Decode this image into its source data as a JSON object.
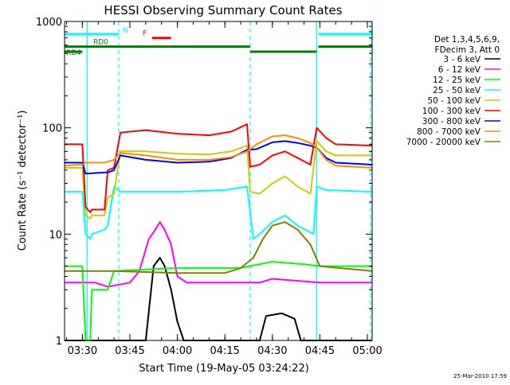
{
  "chart_data": {
    "type": "line",
    "title": "HESSI Observing Summary Count Rates",
    "xlabel": "Start Time (19-May-05 03:24:22)",
    "ylabel": "Count Rate (s⁻¹ detector⁻¹)",
    "yscale": "log",
    "ylim": [
      1,
      1000
    ],
    "yticks": [
      {
        "value": 1,
        "label": "1"
      },
      {
        "value": 10,
        "label": "10"
      },
      {
        "value": 100,
        "label": "100"
      },
      {
        "value": 1000,
        "label": "1000"
      }
    ],
    "xlim": [
      "03:24:22",
      "05:01:30"
    ],
    "xticks": [
      {
        "value": "03:30",
        "label": "03:30"
      },
      {
        "value": "03:45",
        "label": "03:45"
      },
      {
        "value": "04:00",
        "label": "04:00"
      },
      {
        "value": "04:15",
        "label": "04:15"
      },
      {
        "value": "04:30",
        "label": "04:30"
      },
      {
        "value": "04:45",
        "label": "04:45"
      },
      {
        "value": "05:00",
        "label": "05:00"
      }
    ],
    "grid": false,
    "legend_placement": "right",
    "legend_header": [
      "Det 1,3,4,5,6,9,",
      "FDecim 3, Att 0"
    ],
    "timestamp": "25-Mar-2010 17:59",
    "flag_bars": [
      {
        "label": "N",
        "color": "#00ffff",
        "level": 760,
        "segments": [
          [
            "03:24:22",
            "03:41:30"
          ],
          [
            "04:44:30",
            "05:01:30"
          ]
        ]
      },
      {
        "label": "F",
        "color": "#ff0000",
        "level": 700,
        "segments": [
          [
            "03:52:00",
            "03:58:00"
          ]
        ]
      },
      {
        "label": "RD0",
        "color": "#008000",
        "level": 580,
        "segments": [
          [
            "03:24:22",
            "04:23:00"
          ],
          [
            "04:44:30",
            "05:01:30"
          ]
        ]
      },
      {
        "label": "RD4",
        "color": "#008000",
        "level": 520,
        "segments": [
          [
            "03:24:22",
            "03:30:00"
          ],
          [
            "04:23:00",
            "04:44:00"
          ]
        ]
      }
    ],
    "event_lines": {
      "color": "#00ffff",
      "solid": [
        "03:31:30",
        "04:44:00"
      ],
      "dashed": [
        "03:41:30",
        "04:23:00",
        "05:01:00"
      ]
    },
    "series": [
      {
        "name": "3 - 6 keV",
        "color": "#000000",
        "points": [
          [
            "03:24:22",
            1
          ],
          [
            "03:50:00",
            1
          ],
          [
            "03:52:30",
            5
          ],
          [
            "03:54:30",
            6
          ],
          [
            "03:56:00",
            5
          ],
          [
            "03:58:00",
            3
          ],
          [
            "04:00:00",
            1.5
          ],
          [
            "04:02:00",
            1
          ],
          [
            "04:26:00",
            1
          ],
          [
            "04:28:00",
            1.7
          ],
          [
            "04:33:00",
            1.8
          ],
          [
            "04:37:00",
            1.6
          ],
          [
            "04:39:00",
            1
          ],
          [
            "05:01:30",
            1
          ]
        ]
      },
      {
        "name": "6 - 12 keV",
        "color": "#ff00ff",
        "points": [
          [
            "03:24:22",
            3.5
          ],
          [
            "03:34:00",
            3.5
          ],
          [
            "03:38:00",
            3.2
          ],
          [
            "03:45:00",
            3.5
          ],
          [
            "03:48:00",
            4.5
          ],
          [
            "03:51:00",
            9
          ],
          [
            "03:53:00",
            11
          ],
          [
            "03:54:30",
            13
          ],
          [
            "03:56:00",
            11
          ],
          [
            "03:58:00",
            8
          ],
          [
            "04:00:00",
            4
          ],
          [
            "04:03:00",
            3.5
          ],
          [
            "04:26:00",
            3.5
          ],
          [
            "04:30:00",
            3.8
          ],
          [
            "04:45:00",
            3.5
          ],
          [
            "05:01:30",
            3.5
          ]
        ]
      },
      {
        "name": "12 - 25 keV",
        "color": "#00ff00",
        "points": [
          [
            "03:24:22",
            5
          ],
          [
            "03:30:00",
            5
          ],
          [
            "03:31:00",
            1
          ],
          [
            "03:32:30",
            1
          ],
          [
            "03:33:00",
            3
          ],
          [
            "03:38:00",
            3
          ],
          [
            "03:40:00",
            4.5
          ],
          [
            "04:00:00",
            4.8
          ],
          [
            "04:20:00",
            4.8
          ],
          [
            "04:30:00",
            5.5
          ],
          [
            "04:40:00",
            5.2
          ],
          [
            "04:45:00",
            5
          ],
          [
            "05:01:30",
            5
          ]
        ]
      },
      {
        "name": "25 - 50 keV",
        "color": "#00ffff",
        "points": [
          [
            "03:24:22",
            25
          ],
          [
            "03:30:00",
            25
          ],
          [
            "03:31:00",
            10
          ],
          [
            "03:32:30",
            9
          ],
          [
            "03:33:00",
            10
          ],
          [
            "03:37:00",
            11
          ],
          [
            "03:38:00",
            12
          ],
          [
            "03:40:00",
            28
          ],
          [
            "03:42:00",
            25
          ],
          [
            "04:00:00",
            25
          ],
          [
            "04:15:00",
            26
          ],
          [
            "04:22:00",
            28
          ],
          [
            "04:24:00",
            9
          ],
          [
            "04:26:00",
            10
          ],
          [
            "04:30:00",
            13
          ],
          [
            "04:34:00",
            15
          ],
          [
            "04:38:00",
            12
          ],
          [
            "04:43:00",
            10
          ],
          [
            "04:44:00",
            28
          ],
          [
            "04:47:00",
            26
          ],
          [
            "05:01:30",
            25
          ]
        ]
      },
      {
        "name": "50 - 100 keV",
        "color": "#cccc00",
        "points": [
          [
            "03:24:22",
            42
          ],
          [
            "03:30:00",
            42
          ],
          [
            "03:31:00",
            15
          ],
          [
            "03:32:30",
            14
          ],
          [
            "03:33:00",
            15
          ],
          [
            "03:37:00",
            15
          ],
          [
            "03:38:00",
            22
          ],
          [
            "03:40:00",
            24
          ],
          [
            "03:42:00",
            60
          ],
          [
            "03:50:00",
            60
          ],
          [
            "04:00:00",
            57
          ],
          [
            "04:10:00",
            56
          ],
          [
            "04:17:00",
            60
          ],
          [
            "04:22:00",
            68
          ],
          [
            "04:23:00",
            25
          ],
          [
            "04:26:00",
            24
          ],
          [
            "04:30:00",
            30
          ],
          [
            "04:34:00",
            35
          ],
          [
            "04:38:00",
            28
          ],
          [
            "04:42:00",
            24
          ],
          [
            "04:44:00",
            75
          ],
          [
            "04:47:00",
            60
          ],
          [
            "04:50:00",
            55
          ],
          [
            "05:01:30",
            55
          ]
        ]
      },
      {
        "name": "100 - 300 keV",
        "color": "#ff0000",
        "points": [
          [
            "03:24:22",
            70
          ],
          [
            "03:30:00",
            70
          ],
          [
            "03:31:00",
            18
          ],
          [
            "03:32:30",
            16
          ],
          [
            "03:33:00",
            17
          ],
          [
            "03:37:00",
            17
          ],
          [
            "03:38:00",
            40
          ],
          [
            "03:40:00",
            42
          ],
          [
            "03:42:00",
            90
          ],
          [
            "03:50:00",
            95
          ],
          [
            "04:00:00",
            88
          ],
          [
            "04:10:00",
            85
          ],
          [
            "04:17:00",
            92
          ],
          [
            "04:22:00",
            108
          ],
          [
            "04:23:00",
            43
          ],
          [
            "04:26:00",
            45
          ],
          [
            "04:30:00",
            55
          ],
          [
            "04:34:00",
            60
          ],
          [
            "04:38:00",
            52
          ],
          [
            "04:42:00",
            45
          ],
          [
            "04:44:00",
            100
          ],
          [
            "04:47:00",
            80
          ],
          [
            "04:50:00",
            70
          ],
          [
            "05:01:30",
            68
          ]
        ]
      },
      {
        "name": "300 - 800 keV",
        "color": "#0000ff",
        "points": [
          [
            "03:24:22",
            47
          ],
          [
            "03:30:00",
            47
          ],
          [
            "03:31:00",
            37
          ],
          [
            "03:37:00",
            38
          ],
          [
            "03:38:00",
            38
          ],
          [
            "03:40:00",
            40
          ],
          [
            "03:42:00",
            55
          ],
          [
            "03:50:00",
            50
          ],
          [
            "04:00:00",
            47
          ],
          [
            "04:10:00",
            48
          ],
          [
            "04:17:00",
            52
          ],
          [
            "04:22:00",
            62
          ],
          [
            "04:25:00",
            63
          ],
          [
            "04:30:00",
            73
          ],
          [
            "04:34:00",
            75
          ],
          [
            "04:38:00",
            72
          ],
          [
            "04:42:00",
            68
          ],
          [
            "04:44:00",
            65
          ],
          [
            "04:47:00",
            52
          ],
          [
            "04:50:00",
            47
          ],
          [
            "05:01:30",
            45
          ]
        ]
      },
      {
        "name": "800 - 7000 keV",
        "color": "#ff8c00",
        "points": [
          [
            "03:24:22",
            44
          ],
          [
            "03:30:00",
            45
          ],
          [
            "03:31:00",
            47
          ],
          [
            "03:37:00",
            47
          ],
          [
            "03:38:00",
            48
          ],
          [
            "03:40:00",
            50
          ],
          [
            "03:42:00",
            58
          ],
          [
            "03:50:00",
            55
          ],
          [
            "04:00:00",
            50
          ],
          [
            "04:10:00",
            50
          ],
          [
            "04:17:00",
            53
          ],
          [
            "04:22:00",
            60
          ],
          [
            "04:25:00",
            70
          ],
          [
            "04:30:00",
            83
          ],
          [
            "04:34:00",
            85
          ],
          [
            "04:38:00",
            80
          ],
          [
            "04:42:00",
            72
          ],
          [
            "04:44:00",
            65
          ],
          [
            "04:47:00",
            50
          ],
          [
            "04:50:00",
            44
          ],
          [
            "05:01:30",
            42
          ]
        ]
      },
      {
        "name": "7000 - 20000 keV",
        "color": "#808000",
        "points": [
          [
            "03:24:22",
            4.5
          ],
          [
            "03:40:00",
            4.5
          ],
          [
            "04:00:00",
            4.3
          ],
          [
            "04:15:00",
            4.3
          ],
          [
            "04:20:00",
            4.8
          ],
          [
            "04:24:00",
            6
          ],
          [
            "04:27:00",
            9
          ],
          [
            "04:30:00",
            12
          ],
          [
            "04:34:00",
            13
          ],
          [
            "04:38:00",
            11
          ],
          [
            "04:42:00",
            8
          ],
          [
            "04:45:00",
            5
          ],
          [
            "05:01:30",
            4.5
          ]
        ]
      }
    ]
  }
}
